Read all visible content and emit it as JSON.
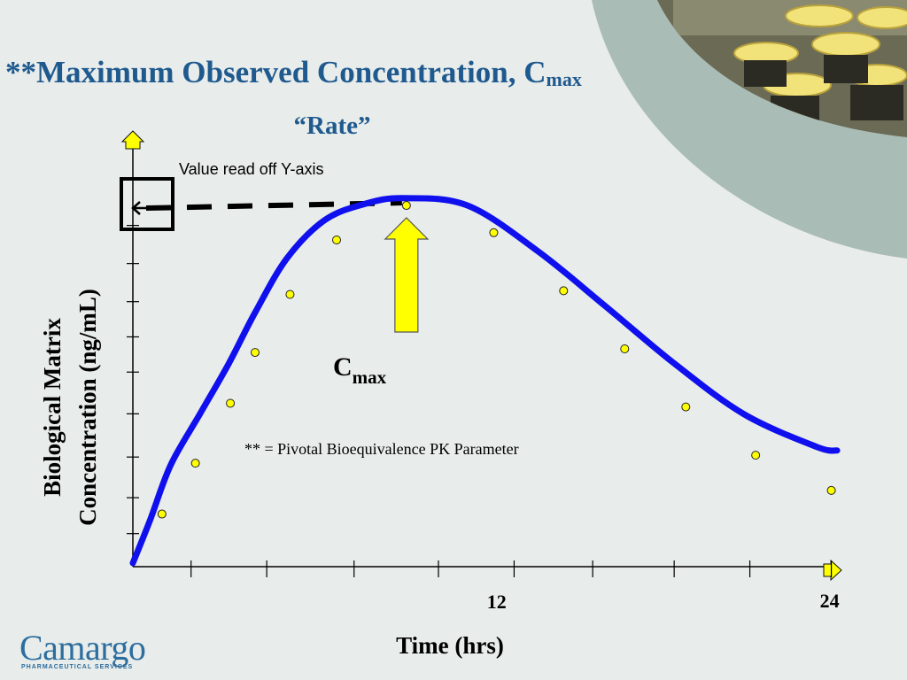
{
  "slide": {
    "title": "**Maximum Observed Concentration, C",
    "title_sub": "max",
    "subtitle": "“Rate”",
    "logo": "Camargo",
    "logo_tagline": "PHARMACEUTICAL SERVICES",
    "photo_icon": "pill-bottles-photo-icon",
    "accent_color": "#1f5a8f",
    "curve_color": "#1010ee",
    "marker_color": "#ffff00"
  },
  "chart_data": {
    "type": "line",
    "title": "",
    "xlabel": "Time (hrs)",
    "ylabel_lines": [
      "Biological Matrix",
      "Concentration (ng/mL)"
    ],
    "xlim": [
      0,
      24.5
    ],
    "ylim": [
      0,
      10
    ],
    "x_tick_labels": [
      {
        "value": 12.5,
        "label": "12"
      },
      {
        "value": 24,
        "label": "24"
      }
    ],
    "x_tick_marks": [
      2,
      4.6,
      7.6,
      10.5,
      13.1,
      15.8,
      18.6,
      21.2,
      24
    ],
    "y_tick_marks": [
      0.91,
      1.9,
      3.02,
      4.21,
      5.36,
      6.33,
      7.3,
      8.35,
      9.4
    ],
    "series": [
      {
        "x": [
          0,
          0.6,
          1.3,
          2.3,
          3.3,
          4.2,
          5.3,
          6.6,
          8.0,
          9.3,
          11.5,
          13.9,
          16.2,
          18.6,
          21.0,
          23.5,
          24.2
        ],
        "y": [
          0.1,
          1.3,
          2.8,
          4.2,
          5.6,
          7.0,
          8.5,
          9.55,
          10.0,
          10.15,
          9.95,
          8.7,
          7.2,
          5.6,
          4.2,
          3.3,
          3.2
        ]
      }
    ],
    "points": [
      {
        "x": 1.0,
        "y": 1.45
      },
      {
        "x": 2.15,
        "y": 2.85
      },
      {
        "x": 3.35,
        "y": 4.5
      },
      {
        "x": 4.2,
        "y": 5.9
      },
      {
        "x": 5.4,
        "y": 7.5
      },
      {
        "x": 7.0,
        "y": 9.0
      },
      {
        "x": 9.4,
        "y": 9.95
      },
      {
        "x": 12.4,
        "y": 9.2
      },
      {
        "x": 14.8,
        "y": 7.6
      },
      {
        "x": 16.9,
        "y": 6.0
      },
      {
        "x": 19.0,
        "y": 4.4
      },
      {
        "x": 21.4,
        "y": 3.07
      },
      {
        "x": 24.0,
        "y": 2.1
      }
    ],
    "annotations": {
      "value_label": "Value read off Y-axis",
      "cmax_text": "C",
      "cmax_sub": "max",
      "cmax_x": 9.4,
      "cmax_y": 9.95,
      "footnote": "** = Pivotal Bioequivalence PK Parameter"
    }
  }
}
